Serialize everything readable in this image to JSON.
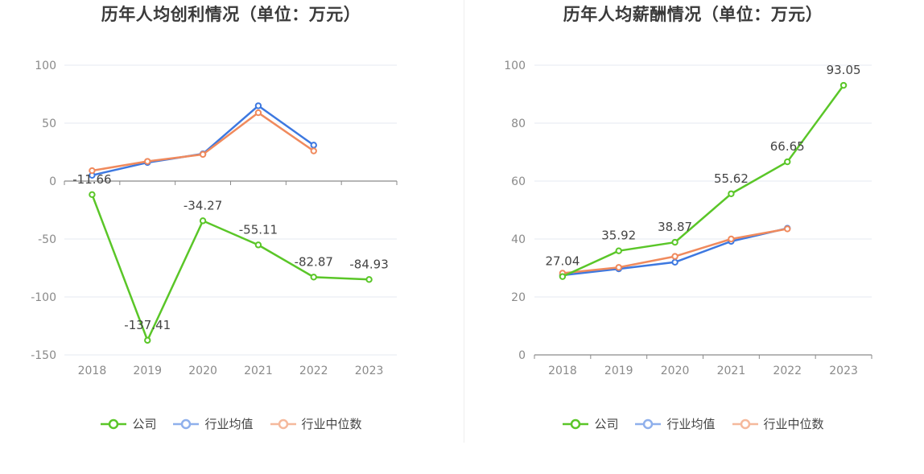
{
  "colors": {
    "company": "#5ac628",
    "avg": "#3d78e0",
    "median": "#f08a5d",
    "grid": "#e6e9f2",
    "axis": "#8a8a8a"
  },
  "legend": {
    "company": "公司",
    "avg": "行业均值",
    "median": "行业中位数"
  },
  "chart_data": [
    {
      "type": "line",
      "title": "历年人均创利情况（单位：万元）",
      "categories": [
        "2018",
        "2019",
        "2020",
        "2021",
        "2022",
        "2023"
      ],
      "ylim": [
        -150,
        100
      ],
      "yticks": [
        100,
        50,
        0,
        -50,
        -100,
        -150
      ],
      "grid": true,
      "legend_position": "bottom",
      "series": [
        {
          "name": "公司",
          "key": "company",
          "values": [
            -11.66,
            -137.41,
            -34.27,
            -55.11,
            -82.87,
            -84.93
          ],
          "labels": [
            "-11.66",
            "-137.41",
            "-34.27",
            "-55.11",
            "-82.87",
            "-84.93"
          ]
        },
        {
          "name": "行业均值",
          "key": "avg",
          "values": [
            5,
            16,
            23.5,
            65,
            31,
            null
          ]
        },
        {
          "name": "行业中位数",
          "key": "median",
          "values": [
            9,
            17,
            23,
            59,
            26,
            null
          ]
        }
      ]
    },
    {
      "type": "line",
      "title": "历年人均薪酬情况（单位：万元）",
      "categories": [
        "2018",
        "2019",
        "2020",
        "2021",
        "2022",
        "2023"
      ],
      "ylim": [
        0,
        100
      ],
      "yticks": [
        100,
        80,
        60,
        40,
        20,
        0
      ],
      "grid": true,
      "legend_position": "bottom",
      "series": [
        {
          "name": "公司",
          "key": "company",
          "values": [
            27.04,
            35.92,
            38.87,
            55.62,
            66.65,
            93.05
          ],
          "labels": [
            "27.04",
            "35.92",
            "38.87",
            "55.62",
            "66.65",
            "93.05"
          ]
        },
        {
          "name": "行业均值",
          "key": "avg",
          "values": [
            27.5,
            29.7,
            32,
            39.2,
            43.7,
            null
          ]
        },
        {
          "name": "行业中位数",
          "key": "median",
          "values": [
            28.2,
            30.2,
            34,
            40,
            43.5,
            null
          ]
        }
      ]
    }
  ]
}
